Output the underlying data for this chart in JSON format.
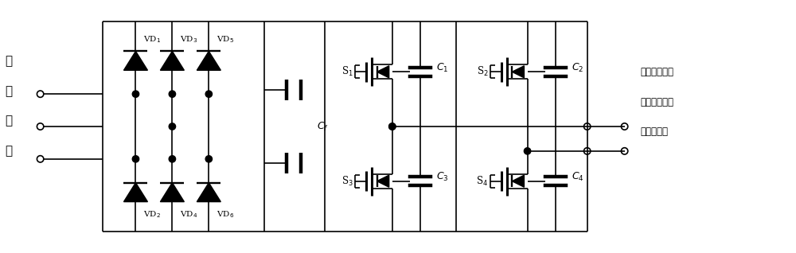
{
  "bg_color": "#ffffff",
  "line_color": "#000000",
  "fig_width": 10.0,
  "fig_height": 3.18,
  "labels": {
    "source_label": [
      "工",
      "频",
      "电",
      "源"
    ],
    "output_label": [
      "高压绕组短接",
      "的特斯拉线圈",
      "的低压绕组"
    ],
    "vd_top": [
      "VD$_1$",
      "VD$_3$",
      "VD$_5$"
    ],
    "vd_bot": [
      "VD$_2$",
      "VD$_4$",
      "VD$_6$"
    ],
    "sw_labels": [
      "S$_1$",
      "S$_2$",
      "S$_3$",
      "S$_4$"
    ],
    "cap_labels": [
      "$C_1$",
      "$C_2$",
      "$C_3$",
      "$C_4$"
    ],
    "cf_label": "$C_f$"
  }
}
